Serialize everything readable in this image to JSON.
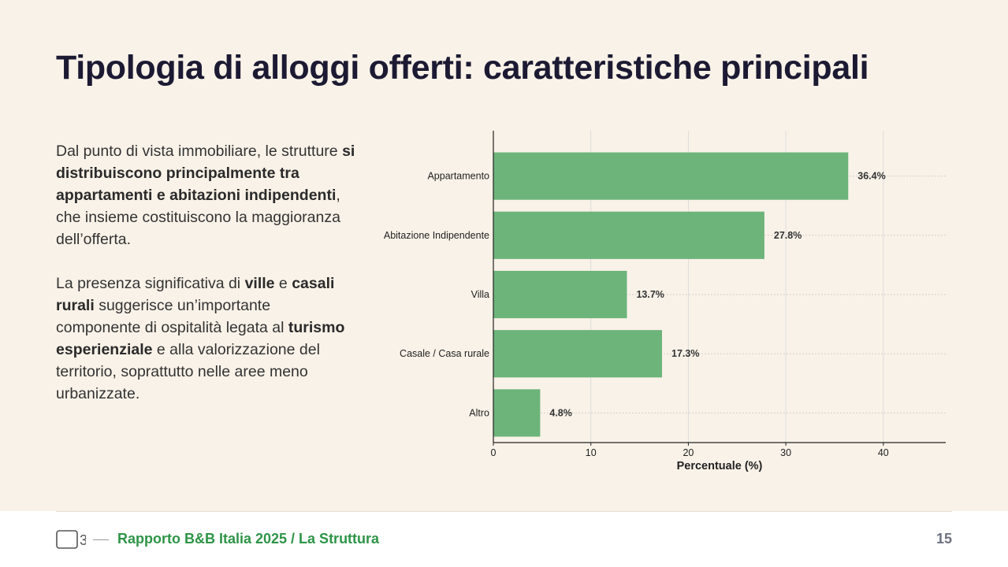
{
  "slide": {
    "title": "Tipologia di alloggi offerti: caratteristiche principali",
    "paragraph1": {
      "t1": "Dal punto di vista immobiliare, le strutture ",
      "b1": "si distribuiscono principalmente tra appartamenti e abitazioni indipendenti",
      "t2": ", che insieme costituiscono la maggioranza dell’offerta."
    },
    "paragraph2": {
      "t1": "La presenza significativa di ",
      "b1": "ville",
      "t2": " e ",
      "b2": "casali rurali",
      "t3": " suggerisce un’importante componente di ospitalità legata al ",
      "b3": "turismo esperienziale",
      "t4": " e alla valorizzazione del territorio, soprattutto nelle aree meno urbanizzate."
    }
  },
  "chart_data": {
    "type": "bar",
    "orientation": "horizontal",
    "title": "",
    "categories": [
      "Appartamento",
      "Abitazione Indipendente",
      "Villa",
      "Casale / Casa rurale",
      "Altro"
    ],
    "values": [
      36.4,
      27.8,
      13.7,
      17.3,
      4.8
    ],
    "value_labels": [
      "36.4%",
      "27.8%",
      "13.7%",
      "17.3%",
      "4.8%"
    ],
    "xlabel": "Percentuale (%)",
    "ylabel": "",
    "xlim": [
      0,
      46.4
    ],
    "xticks": [
      0,
      10,
      20,
      30,
      40
    ],
    "grid": true,
    "bar_color": "#6db47a"
  },
  "footer": {
    "logo_text": "3",
    "label": "Rapporto B&B Italia 2025 /  La Struttura",
    "page_number": "15"
  },
  "colors": {
    "background": "#f9f2e8",
    "title": "#1c1a33",
    "accent_green": "#2e9447"
  }
}
